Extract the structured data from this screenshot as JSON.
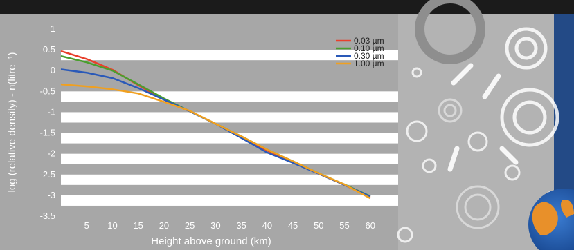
{
  "chart_data": {
    "type": "line",
    "title": "",
    "xlabel": "Height above ground (km)",
    "ylabel": "log (relative density) - n(litre⁻¹)",
    "xlim": [
      0,
      65
    ],
    "ylim": [
      -3.5,
      1
    ],
    "x_ticks": [
      5,
      10,
      15,
      20,
      25,
      30,
      35,
      40,
      45,
      50,
      55,
      60
    ],
    "y_ticks": [
      1,
      0.5,
      0,
      -0.5,
      -1,
      -1.5,
      -2,
      -2.5,
      -3,
      -3.5
    ],
    "grid": "horizontal bands",
    "legend_position": "top-right",
    "series": [
      {
        "name": "0.03 µm",
        "color": "#e8402c",
        "x": [
          0,
          5,
          10,
          15,
          20,
          25,
          30,
          35,
          40,
          45,
          50,
          55,
          60
        ],
        "y": [
          0.47,
          0.28,
          0.02,
          -0.35,
          -0.7,
          -0.98,
          -1.28,
          -1.6,
          -1.92,
          -2.2,
          -2.48,
          -2.75,
          -3.05
        ]
      },
      {
        "name": "0.10 µm",
        "color": "#4a9e2e",
        "x": [
          0,
          5,
          10,
          15,
          20,
          25,
          30,
          35,
          40,
          45,
          50,
          55,
          60
        ],
        "y": [
          0.35,
          0.2,
          0.0,
          -0.33,
          -0.67,
          -0.98,
          -1.28,
          -1.58,
          -1.9,
          -2.18,
          -2.47,
          -2.74,
          -3.02
        ]
      },
      {
        "name": "0.30 µm",
        "color": "#2a59b8",
        "x": [
          0,
          5,
          10,
          15,
          20,
          25,
          30,
          35,
          40,
          45,
          50,
          55,
          60
        ],
        "y": [
          0.03,
          -0.05,
          -0.18,
          -0.42,
          -0.7,
          -0.98,
          -1.28,
          -1.62,
          -1.97,
          -2.22,
          -2.48,
          -2.75,
          -3.03
        ]
      },
      {
        "name": "1.00 µm",
        "color": "#f0a020",
        "x": [
          0,
          5,
          10,
          15,
          20,
          25,
          30,
          35,
          40,
          45,
          50,
          55,
          60
        ],
        "y": [
          -0.33,
          -0.38,
          -0.45,
          -0.55,
          -0.75,
          -0.97,
          -1.28,
          -1.58,
          -1.9,
          -2.18,
          -2.47,
          -2.74,
          -3.07
        ]
      }
    ]
  }
}
